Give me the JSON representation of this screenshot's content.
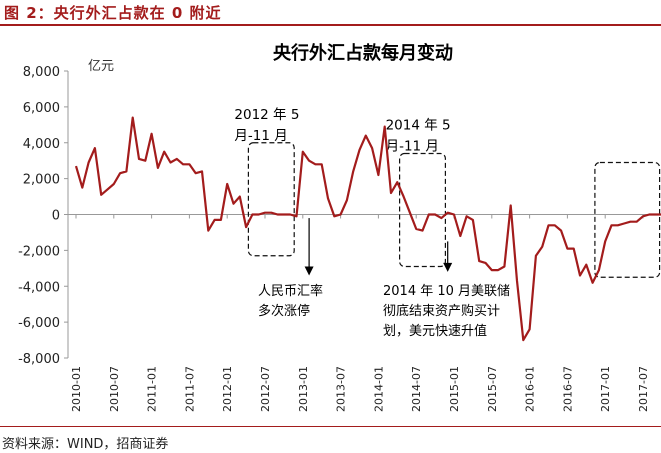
{
  "figure": {
    "header": "图 2：央行外汇占款在 0 附近",
    "source": "资料来源：WIND，招商证券"
  },
  "colors": {
    "line": "#a31c1c",
    "header": "#a31c1c",
    "axis": "#999999"
  },
  "chart_data": {
    "type": "line",
    "title": "央行外汇占款每月变动",
    "ylabel": "亿元",
    "xlabel": "",
    "ylim": [
      -8000,
      8000
    ],
    "yticks": [
      8000,
      6000,
      4000,
      2000,
      0,
      -2000,
      -4000,
      -6000,
      -8000
    ],
    "ytick_labels": [
      "8,000",
      "6,000",
      "4,000",
      "2,000",
      "0",
      "-2,000",
      "-4,000",
      "-6,000",
      "-8,000"
    ],
    "xtick_labels": [
      "2010-01",
      "2010-07",
      "2011-01",
      "2011-07",
      "2012-01",
      "2012-07",
      "2013-01",
      "2013-07",
      "2014-01",
      "2014-07",
      "2015-01",
      "2015-07",
      "2016-01",
      "2016-07",
      "2017-01",
      "2017-07"
    ],
    "grid": false,
    "legend": "none",
    "series": [
      {
        "x_start": "2010-01",
        "x_end": "2017-10",
        "values": [
          2700,
          1500,
          2900,
          3700,
          1100,
          1400,
          1700,
          2300,
          2400,
          5400,
          3100,
          3000,
          4500,
          2600,
          3500,
          2900,
          3100,
          2800,
          2800,
          2300,
          2400,
          -900,
          -300,
          -300,
          1700,
          600,
          1000,
          -700,
          0,
          0,
          100,
          100,
          0,
          0,
          0,
          -100,
          3500,
          3000,
          2800,
          2800,
          900,
          -100,
          0,
          800,
          2400,
          3600,
          4400,
          3700,
          2200,
          4900,
          1200,
          1800,
          1000,
          100,
          -800,
          -900,
          0,
          0,
          -200,
          100,
          0,
          -1200,
          -100,
          -300,
          -2600,
          -2700,
          -3100,
          -3100,
          -2900,
          500,
          -3700,
          -7000,
          -6400,
          -2300,
          -1800,
          -600,
          -600,
          -900,
          -1900,
          -1900,
          -3400,
          -2800,
          -3800,
          -3100,
          -1500,
          -600,
          -600,
          -500,
          -400,
          -400,
          -100,
          0,
          0,
          0
        ]
      }
    ],
    "annotations": [
      {
        "name": "box-2012",
        "label_lines": [
          "2012 年 5",
          "月-11 月"
        ],
        "from": "2012-05",
        "to": "2012-11",
        "y_top": 4000,
        "y_bottom": -2300
      },
      {
        "name": "box-2014",
        "label_lines": [
          "2014 年 5",
          "月-11 月"
        ],
        "from": "2014-05",
        "to": "2014-11",
        "y_top": 3400,
        "y_bottom": -2900
      },
      {
        "name": "box-2017",
        "from": "2016-12",
        "to": "2017-09",
        "y_top": 2900,
        "y_bottom": -3500
      }
    ],
    "notes": [
      {
        "name": "note-rmb",
        "lines": [
          "人民币汇率",
          "多次涨停"
        ]
      },
      {
        "name": "note-fed",
        "lines": [
          "2014 年 10 月美联储",
          "彻底结束资产购买计",
          "划，美元快速升值"
        ]
      }
    ]
  }
}
